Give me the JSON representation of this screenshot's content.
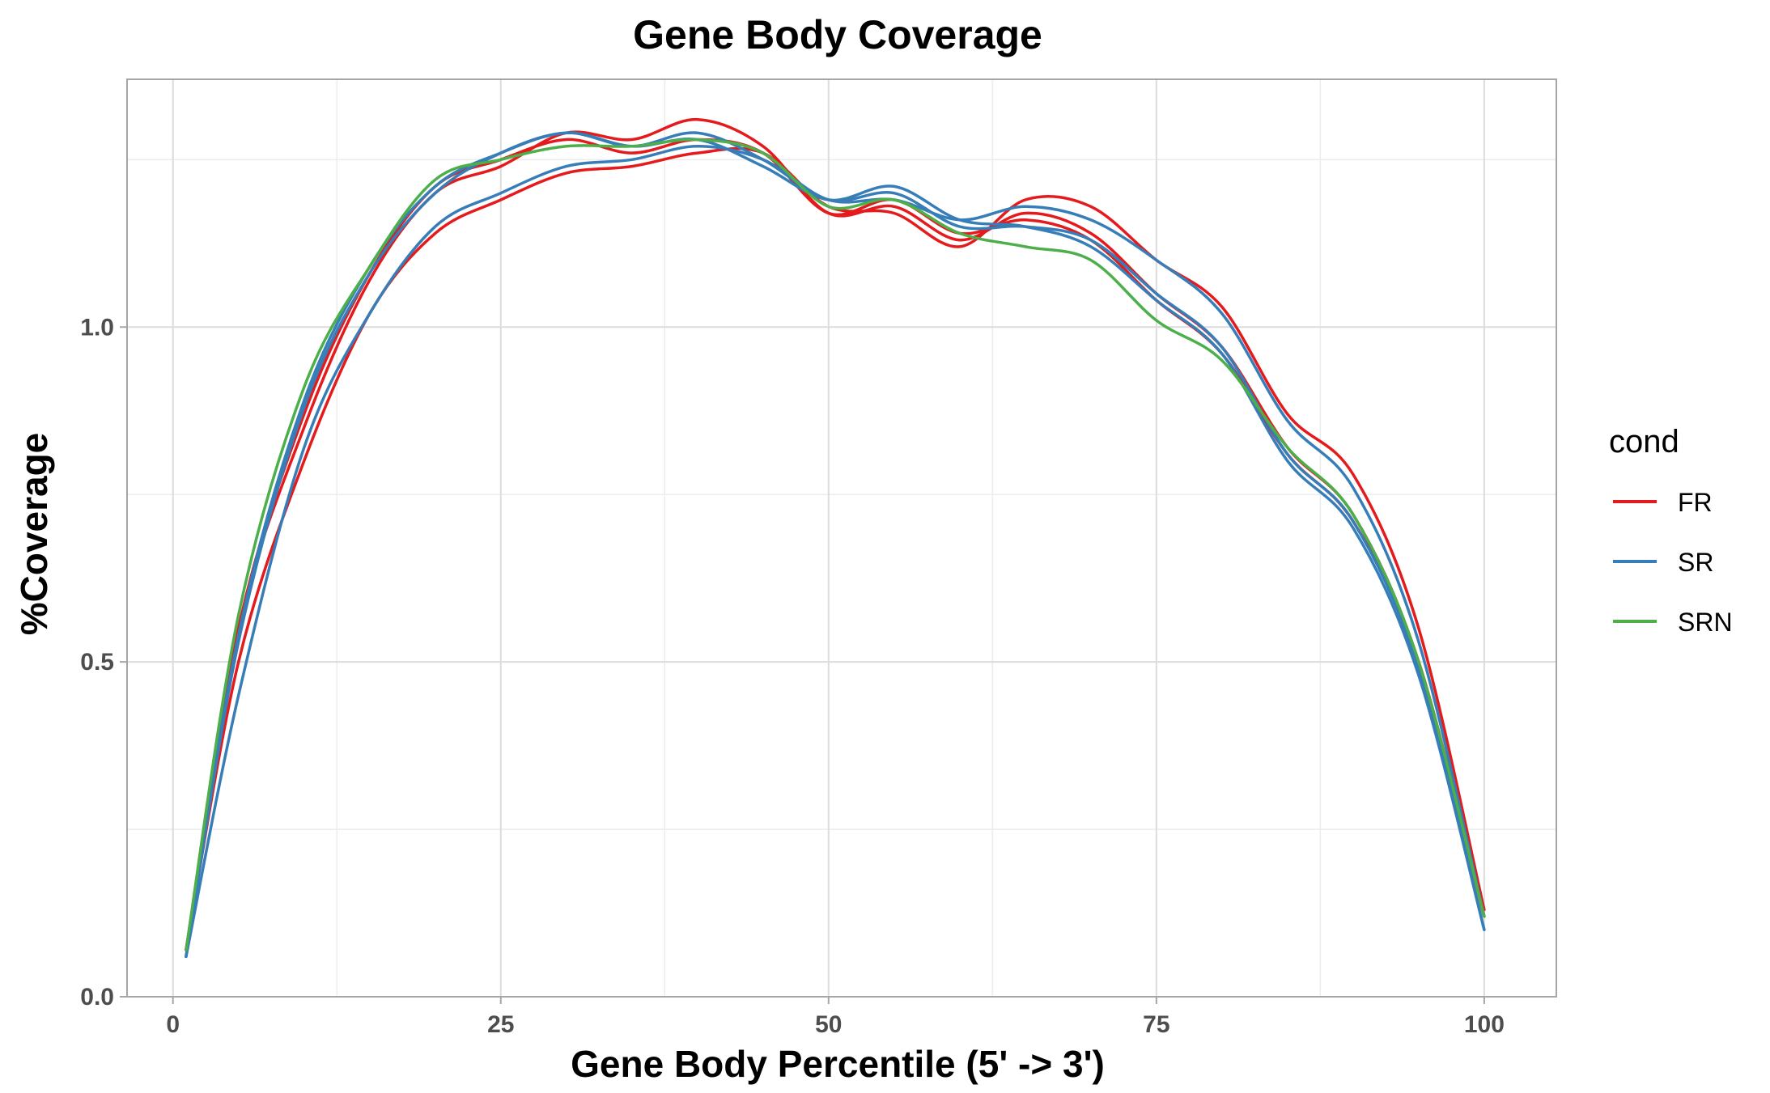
{
  "chart_data": {
    "type": "line",
    "title": "Gene Body Coverage",
    "xlabel": "Gene Body Percentile (5' -> 3')",
    "ylabel": "%Coverage",
    "xlim": [
      -3.5,
      105.5
    ],
    "ylim": [
      -0.0,
      1.37
    ],
    "xticks": [
      0,
      25,
      50,
      75,
      100
    ],
    "xtick_labels": [
      "0",
      "25",
      "50",
      "75",
      "100"
    ],
    "yticks": [
      0.0,
      0.5,
      1.0
    ],
    "ytick_labels": [
      "0.0",
      "0.5",
      "1.0"
    ],
    "grid": true,
    "legend": {
      "title": "cond",
      "position": "right",
      "entries": [
        {
          "label": "FR",
          "color": "#E41A1C"
        },
        {
          "label": "SR",
          "color": "#377EB8"
        },
        {
          "label": "SRN",
          "color": "#4DAF4A"
        }
      ]
    },
    "x": [
      1,
      5,
      10,
      15,
      20,
      25,
      30,
      35,
      40,
      45,
      50,
      55,
      60,
      65,
      70,
      75,
      80,
      85,
      90,
      95,
      100
    ],
    "series": [
      {
        "group": "FR",
        "color": "#E41A1C",
        "values": [
          0.07,
          0.55,
          0.85,
          1.07,
          1.2,
          1.24,
          1.29,
          1.28,
          1.31,
          1.27,
          1.17,
          1.18,
          1.13,
          1.17,
          1.14,
          1.05,
          0.97,
          0.82,
          0.72,
          0.5,
          0.12
        ]
      },
      {
        "group": "FR",
        "color": "#E41A1C",
        "values": [
          0.07,
          0.5,
          0.8,
          1.02,
          1.14,
          1.19,
          1.23,
          1.24,
          1.26,
          1.26,
          1.18,
          1.17,
          1.12,
          1.19,
          1.18,
          1.1,
          1.03,
          0.87,
          0.78,
          0.55,
          0.13
        ]
      },
      {
        "group": "FR",
        "color": "#E41A1C",
        "values": [
          0.07,
          0.55,
          0.87,
          1.08,
          1.21,
          1.25,
          1.28,
          1.26,
          1.28,
          1.26,
          1.17,
          1.19,
          1.14,
          1.16,
          1.13,
          1.04,
          0.96,
          0.81,
          0.71,
          0.5,
          0.12
        ]
      },
      {
        "group": "SR",
        "color": "#377EB8",
        "values": [
          0.06,
          0.45,
          0.82,
          1.02,
          1.15,
          1.2,
          1.24,
          1.25,
          1.27,
          1.25,
          1.19,
          1.19,
          1.16,
          1.18,
          1.16,
          1.1,
          1.02,
          0.86,
          0.76,
          0.53,
          0.12
        ]
      },
      {
        "group": "SR",
        "color": "#377EB8",
        "values": [
          0.06,
          0.53,
          0.88,
          1.08,
          1.2,
          1.26,
          1.29,
          1.27,
          1.29,
          1.25,
          1.19,
          1.2,
          1.15,
          1.15,
          1.13,
          1.05,
          0.97,
          0.81,
          0.71,
          0.49,
          0.1
        ]
      },
      {
        "group": "SR",
        "color": "#377EB8",
        "values": [
          0.06,
          0.54,
          0.89,
          1.09,
          1.21,
          1.26,
          1.29,
          1.27,
          1.28,
          1.24,
          1.19,
          1.21,
          1.16,
          1.15,
          1.12,
          1.04,
          0.96,
          0.8,
          0.7,
          0.48,
          0.1
        ]
      },
      {
        "group": "SRN",
        "color": "#4DAF4A",
        "values": [
          0.07,
          0.57,
          0.91,
          1.09,
          1.22,
          1.25,
          1.27,
          1.27,
          1.28,
          1.26,
          1.18,
          1.19,
          1.14,
          1.12,
          1.1,
          1.01,
          0.95,
          0.82,
          0.72,
          0.5,
          0.12
        ]
      }
    ]
  }
}
